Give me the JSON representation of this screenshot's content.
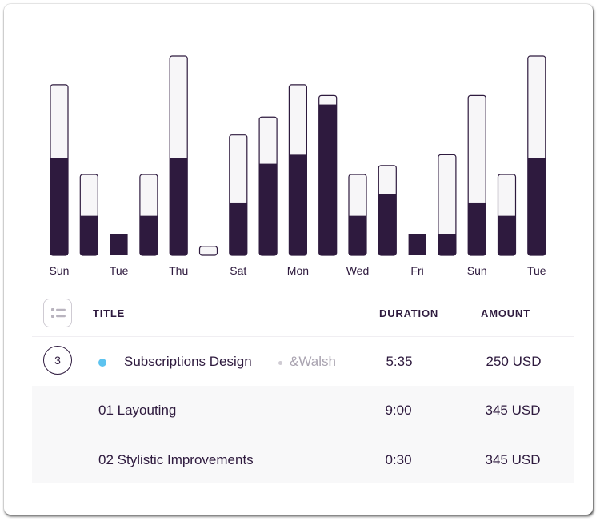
{
  "colors": {
    "bar_fill": "#2e1a3e",
    "bar_track": "#f7f6f8",
    "bar_outline": "#2e1a3e",
    "status_dot": "#5dc3ef",
    "muted_text": "#a9a3b0"
  },
  "chart_data": {
    "type": "bar",
    "categories": [
      "Sun",
      "",
      "Tue",
      "",
      "Thu",
      "",
      "Sat",
      "",
      "Mon",
      "",
      "Wed",
      "",
      "Fri",
      "",
      "Sun",
      "",
      "Tue"
    ],
    "series": [
      {
        "values": [
          54,
          22,
          12,
          22,
          54,
          0,
          29,
          51,
          56,
          84,
          22,
          34,
          12,
          12,
          29,
          22,
          54
        ]
      },
      {
        "values": [
          95,
          45,
          12,
          45,
          111,
          5,
          67,
          77,
          95,
          89,
          45,
          50,
          12,
          56,
          89,
          45,
          111
        ]
      }
    ],
    "ylim": [
      0,
      111
    ],
    "grid": false,
    "legend": "none"
  },
  "table": {
    "headers": {
      "title": "TITLE",
      "duration": "DURATION",
      "amount": "AMOUNT"
    },
    "group": {
      "count": "3",
      "title": "Subscriptions Design",
      "client": "&Walsh",
      "duration": "5:35",
      "amount": "250 USD"
    },
    "rows": [
      {
        "title": "01 Layouting",
        "duration": "9:00",
        "amount": "345 USD"
      },
      {
        "title": "02 Stylistic Improvements",
        "duration": "0:30",
        "amount": "345 USD"
      }
    ]
  }
}
